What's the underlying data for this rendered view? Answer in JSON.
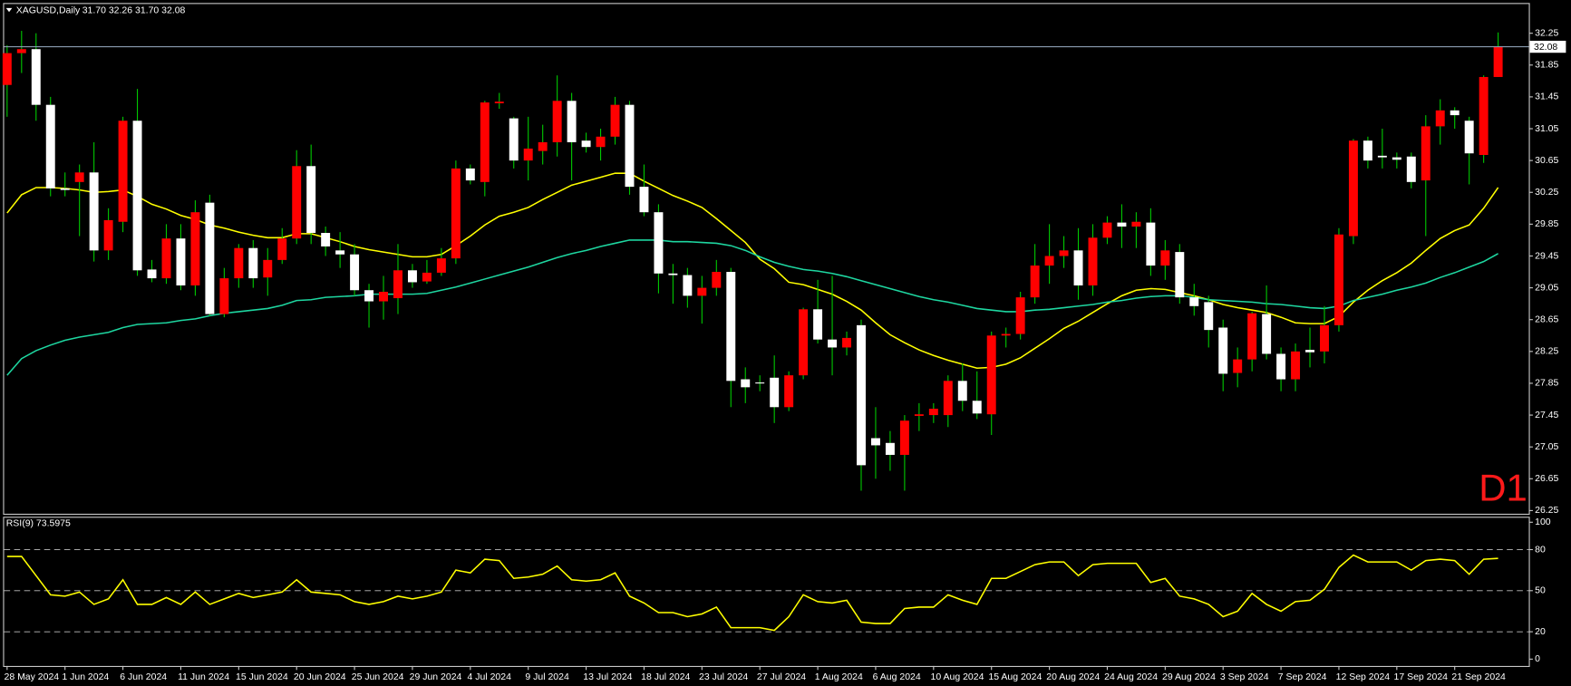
{
  "chart_data": [
    {
      "type": "candlestick",
      "title": "XAGUSD,Daily",
      "ohlc_label": "31.70 32.26 31.70 32.08",
      "timeframe_label": "D1",
      "categories": [
        "28 May 2024",
        null,
        null,
        null,
        "1 Jun 2024",
        null,
        null,
        null,
        "6 Jun 2024",
        null,
        null,
        null,
        "11 Jun 2024",
        null,
        null,
        null,
        "15 Jun 2024",
        null,
        null,
        null,
        "20 Jun 2024",
        null,
        null,
        null,
        "25 Jun 2024",
        null,
        null,
        null,
        "29 Jun 2024",
        null,
        null,
        null,
        "4 Jul 2024",
        null,
        null,
        null,
        "9 Jul 2024",
        null,
        null,
        null,
        "13 Jul 2024",
        null,
        null,
        null,
        "18 Jul 2024",
        null,
        null,
        null,
        "23 Jul 2024",
        null,
        null,
        null,
        "27 Jul 2024",
        null,
        null,
        null,
        "1 Aug 2024",
        null,
        null,
        null,
        "6 Aug 2024",
        null,
        null,
        null,
        "10 Aug 2024",
        null,
        null,
        null,
        "15 Aug 2024",
        null,
        null,
        null,
        "20 Aug 2024",
        null,
        null,
        null,
        "24 Aug 2024",
        null,
        null,
        null,
        "29 Aug 2024",
        null,
        null,
        null,
        "3 Sep 2024",
        null,
        null,
        null,
        "7 Sep 2024",
        null,
        null,
        null,
        "12 Sep 2024",
        null,
        null,
        null,
        "17 Sep 2024",
        null,
        null,
        null,
        "21 Sep 2024",
        null,
        null,
        null
      ],
      "open": [
        31.6,
        32.0,
        32.05,
        31.35,
        30.3,
        30.38,
        30.5,
        29.52,
        29.88,
        31.15,
        29.28,
        29.17,
        29.67,
        29.08,
        30.12,
        28.72,
        29.17,
        29.55,
        29.18,
        29.4,
        29.67,
        30.58,
        29.74,
        29.52,
        29.47,
        29.02,
        28.88,
        28.92,
        29.27,
        29.13,
        29.24,
        29.42,
        30.55,
        30.38,
        31.37,
        31.18,
        30.65,
        30.77,
        30.88,
        31.4,
        30.9,
        30.82,
        30.95,
        31.35,
        30.32,
        30.0,
        29.23,
        29.21,
        28.95,
        29.05,
        29.25,
        27.9,
        27.86,
        27.92,
        27.55,
        27.95,
        28.78,
        28.4,
        28.3,
        28.58,
        27.16,
        27.1,
        26.95,
        27.44,
        27.45,
        27.45,
        27.88,
        27.63,
        27.46,
        28.45,
        28.47,
        28.93,
        29.33,
        29.45,
        29.52,
        29.08,
        29.68,
        29.87,
        29.82,
        29.87,
        29.33,
        29.5,
        28.93,
        28.87,
        28.55,
        27.98,
        28.15,
        28.72,
        28.22,
        27.9,
        28.27,
        28.25,
        28.58,
        29.7,
        30.9,
        30.71,
        30.69,
        30.7,
        30.4,
        31.08,
        31.28,
        31.15,
        30.72,
        31.7
      ],
      "high": [
        32.1,
        32.28,
        32.25,
        31.45,
        30.5,
        30.6,
        30.88,
        30.05,
        31.2,
        31.55,
        29.4,
        29.85,
        29.85,
        30.15,
        30.22,
        29.3,
        29.6,
        29.65,
        29.55,
        29.8,
        30.78,
        30.85,
        29.82,
        29.75,
        29.6,
        29.1,
        29.2,
        29.6,
        29.35,
        29.4,
        29.55,
        30.65,
        30.6,
        31.4,
        31.5,
        31.2,
        31.2,
        31.1,
        31.72,
        31.5,
        31.0,
        31.05,
        31.45,
        31.4,
        30.6,
        30.1,
        29.35,
        29.3,
        29.2,
        29.4,
        29.3,
        28.05,
        27.95,
        28.2,
        28.0,
        28.8,
        29.15,
        29.2,
        28.5,
        28.65,
        27.55,
        27.25,
        27.45,
        27.6,
        27.6,
        27.95,
        28.1,
        28.0,
        28.5,
        28.55,
        29.0,
        29.6,
        29.85,
        29.7,
        29.8,
        29.85,
        29.95,
        30.1,
        30.0,
        30.05,
        29.65,
        29.6,
        29.1,
        28.95,
        28.65,
        28.3,
        28.75,
        29.08,
        28.3,
        28.35,
        28.55,
        28.82,
        29.8,
        30.92,
        30.95,
        31.05,
        30.75,
        30.75,
        31.22,
        31.42,
        31.32,
        31.2,
        31.72,
        32.26
      ],
      "low": [
        31.2,
        31.75,
        31.15,
        30.2,
        30.2,
        29.7,
        29.38,
        29.4,
        29.75,
        29.2,
        29.12,
        29.1,
        29.02,
        28.95,
        28.7,
        28.68,
        29.05,
        29.05,
        28.95,
        29.35,
        29.6,
        29.6,
        29.45,
        29.3,
        28.95,
        28.55,
        28.65,
        28.72,
        29.05,
        29.1,
        29.2,
        29.35,
        30.35,
        30.2,
        31.3,
        30.55,
        30.4,
        30.6,
        30.7,
        30.4,
        30.75,
        30.65,
        30.85,
        30.22,
        29.95,
        28.98,
        28.85,
        28.8,
        28.6,
        28.95,
        27.55,
        27.6,
        27.75,
        27.35,
        27.5,
        27.9,
        28.35,
        27.95,
        28.2,
        26.5,
        26.65,
        26.75,
        26.5,
        27.25,
        27.35,
        27.3,
        27.5,
        27.4,
        27.2,
        28.3,
        28.4,
        28.85,
        29.1,
        29.3,
        28.9,
        28.95,
        29.6,
        29.55,
        29.55,
        29.2,
        29.15,
        28.85,
        28.7,
        28.3,
        27.75,
        27.8,
        28.0,
        28.15,
        27.75,
        27.75,
        28.05,
        28.1,
        28.5,
        29.6,
        30.55,
        30.55,
        30.55,
        30.3,
        29.7,
        30.85,
        31.05,
        30.35,
        30.62,
        31.7
      ],
      "close": [
        32.0,
        32.05,
        31.35,
        30.3,
        30.28,
        30.5,
        29.52,
        29.9,
        31.15,
        29.27,
        29.17,
        29.67,
        29.08,
        30.0,
        28.72,
        29.17,
        29.55,
        29.17,
        29.4,
        29.67,
        30.58,
        29.74,
        29.57,
        29.47,
        29.02,
        28.88,
        29.0,
        29.27,
        29.12,
        29.24,
        29.42,
        30.55,
        30.4,
        31.38,
        31.39,
        30.65,
        30.8,
        30.88,
        31.4,
        30.88,
        30.82,
        30.95,
        31.35,
        30.32,
        30.0,
        29.23,
        29.21,
        28.95,
        29.05,
        29.25,
        27.88,
        27.8,
        27.85,
        27.55,
        27.95,
        28.78,
        28.4,
        28.3,
        28.42,
        26.82,
        27.07,
        26.95,
        27.38,
        27.46,
        27.53,
        27.88,
        27.63,
        27.47,
        28.45,
        28.47,
        28.93,
        29.33,
        29.45,
        29.52,
        29.08,
        29.68,
        29.87,
        29.82,
        29.88,
        29.33,
        29.52,
        28.93,
        28.82,
        28.52,
        27.97,
        28.15,
        28.73,
        28.22,
        27.9,
        28.25,
        28.24,
        28.58,
        29.72,
        30.9,
        30.65,
        30.69,
        30.66,
        30.38,
        31.08,
        31.28,
        31.22,
        30.74,
        31.7,
        32.08
      ],
      "overlays": [
        {
          "color": "#ffff00",
          "values": [
            29.99,
            30.22,
            30.31,
            30.31,
            30.3,
            30.28,
            30.25,
            30.26,
            30.28,
            30.2,
            30.1,
            30.04,
            29.96,
            29.91,
            29.84,
            29.8,
            29.75,
            29.71,
            29.68,
            29.68,
            29.73,
            29.73,
            29.68,
            29.63,
            29.57,
            29.53,
            29.5,
            29.47,
            29.44,
            29.44,
            29.47,
            29.58,
            29.7,
            29.84,
            29.95,
            30.0,
            30.06,
            30.16,
            30.25,
            30.34,
            30.39,
            30.44,
            30.49,
            30.49,
            30.39,
            30.3,
            30.21,
            30.14,
            30.06,
            29.92,
            29.77,
            29.62,
            29.41,
            29.29,
            29.12,
            29.09,
            29.03,
            28.97,
            28.88,
            28.77,
            28.61,
            28.46,
            28.36,
            28.27,
            28.2,
            28.14,
            28.09,
            28.04,
            28.05,
            28.09,
            28.17,
            28.29,
            28.41,
            28.54,
            28.63,
            28.74,
            28.85,
            28.95,
            29.02,
            29.04,
            29.03,
            28.99,
            28.95,
            28.9,
            28.84,
            28.8,
            28.77,
            28.74,
            28.68,
            28.61,
            28.6,
            28.6,
            28.69,
            28.87,
            29.02,
            29.14,
            29.24,
            29.36,
            29.52,
            29.67,
            29.77,
            29.84,
            30.05,
            30.31
          ]
        },
        {
          "color": "#1ed6a0",
          "values": [
            27.95,
            28.16,
            28.26,
            28.33,
            28.39,
            28.43,
            28.46,
            28.49,
            28.55,
            28.59,
            28.6,
            28.61,
            28.64,
            28.66,
            28.7,
            28.73,
            28.75,
            28.77,
            28.79,
            28.83,
            28.89,
            28.9,
            28.93,
            28.94,
            28.95,
            28.97,
            28.97,
            28.97,
            28.97,
            28.98,
            29.02,
            29.06,
            29.11,
            29.16,
            29.21,
            29.26,
            29.31,
            29.37,
            29.43,
            29.48,
            29.52,
            29.57,
            29.61,
            29.65,
            29.65,
            29.65,
            29.63,
            29.63,
            29.62,
            29.61,
            29.58,
            29.52,
            29.44,
            29.37,
            29.32,
            29.28,
            29.26,
            29.23,
            29.19,
            29.14,
            29.09,
            29.04,
            28.99,
            28.94,
            28.9,
            28.87,
            28.83,
            28.79,
            28.77,
            28.75,
            28.75,
            28.77,
            28.78,
            28.8,
            28.82,
            28.84,
            28.87,
            28.89,
            28.92,
            28.94,
            28.95,
            28.95,
            28.93,
            28.9,
            28.89,
            28.88,
            28.87,
            28.85,
            28.84,
            28.82,
            28.8,
            28.79,
            28.82,
            28.89,
            28.93,
            28.97,
            29.02,
            29.06,
            29.11,
            29.18,
            29.24,
            29.31,
            29.38,
            29.48
          ]
        }
      ],
      "up_color": "#ff0000",
      "down_color": "#ffffff",
      "wick_color": "#00c800",
      "last_price": 32.08,
      "ylim": [
        26.21,
        32.63
      ],
      "yticks": [
        32.25,
        31.85,
        31.45,
        31.05,
        30.65,
        30.25,
        29.85,
        29.45,
        29.05,
        28.65,
        28.25,
        27.85,
        27.45,
        27.05,
        26.65,
        26.25
      ]
    },
    {
      "type": "line",
      "title": "RSI(9) 73.5975",
      "color": "#ffff00",
      "values": [
        75,
        75,
        61,
        47,
        46,
        49,
        40,
        44,
        58,
        40,
        40,
        45,
        40,
        49,
        40,
        44,
        48,
        45,
        47,
        49,
        58,
        49,
        48,
        47,
        42,
        40,
        42,
        46,
        44,
        46,
        49,
        65,
        63,
        73,
        72,
        59,
        60,
        62,
        68,
        58,
        57,
        58,
        63,
        46,
        41,
        34,
        34,
        31,
        33,
        38,
        23,
        23,
        23,
        21,
        31,
        47,
        42,
        41,
        43,
        27,
        26,
        26,
        37,
        38,
        38,
        47,
        43,
        40,
        59,
        59,
        64,
        69,
        71,
        71,
        61,
        69,
        70,
        70,
        70,
        56,
        59,
        46,
        44,
        40,
        31,
        35,
        48,
        40,
        35,
        42,
        43,
        51,
        67,
        76,
        71,
        71,
        71,
        65,
        72,
        73,
        72,
        62,
        73,
        73.5975
      ],
      "ylim": [
        -5,
        104
      ],
      "yticks": [
        100,
        80,
        50,
        20,
        0
      ],
      "levels": [
        80,
        50,
        20
      ]
    }
  ]
}
